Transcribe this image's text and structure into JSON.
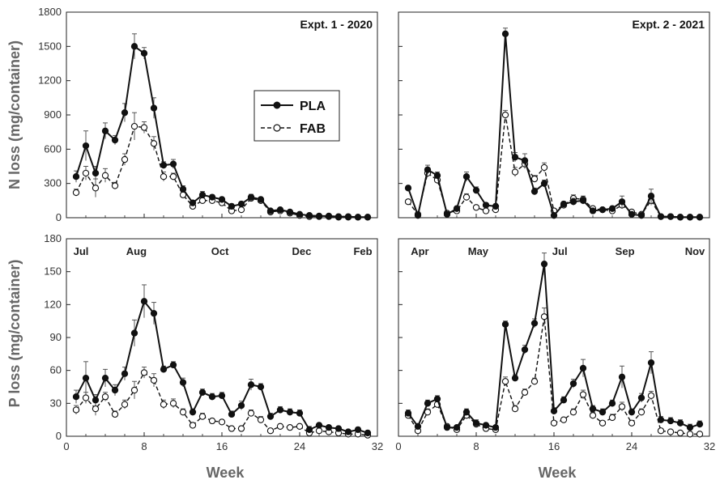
{
  "y_axis_labels": {
    "top": "N loss (mg/container)",
    "bottom": "P loss (mg/container)"
  },
  "x_axis_label": "Week",
  "legend": {
    "pla": "PLA",
    "fab": "FAB"
  },
  "chart_data": [
    {
      "type": "line",
      "title": "Expt. 1 - 2020",
      "xlabel": "Week",
      "ylabel": "N loss (mg/container)",
      "xlim": [
        0,
        32
      ],
      "ylim": [
        0,
        1800
      ],
      "xticks": [
        0,
        8,
        16,
        24,
        32
      ],
      "yticks": [
        0,
        300,
        600,
        900,
        1200,
        1500,
        1800
      ],
      "months": [],
      "series": [
        {
          "name": "PLA",
          "x": [
            1,
            2,
            3,
            4,
            5,
            6,
            7,
            8,
            9,
            10,
            11,
            12,
            13,
            14,
            15,
            16,
            17,
            18,
            19,
            20,
            21,
            22,
            23,
            24,
            25,
            26,
            27,
            28,
            29,
            30,
            31
          ],
          "y": [
            360,
            630,
            390,
            760,
            680,
            920,
            1500,
            1440,
            960,
            460,
            470,
            250,
            130,
            200,
            180,
            160,
            100,
            120,
            180,
            160,
            60,
            70,
            50,
            30,
            20,
            15,
            15,
            10,
            10,
            5,
            5
          ],
          "err": [
            50,
            130,
            60,
            70,
            40,
            80,
            110,
            50,
            90,
            30,
            40,
            30,
            20,
            30,
            20,
            20,
            20,
            20,
            25,
            20,
            10,
            10,
            5,
            5,
            5,
            5,
            5,
            5,
            5,
            5,
            5
          ]
        },
        {
          "name": "FAB",
          "x": [
            1,
            2,
            3,
            4,
            5,
            6,
            7,
            8,
            9,
            10,
            11,
            12,
            13,
            14,
            15,
            16,
            17,
            18,
            19,
            20,
            21,
            22,
            23,
            24,
            25,
            26,
            27,
            28,
            29,
            30,
            31
          ],
          "y": [
            220,
            390,
            260,
            370,
            280,
            510,
            800,
            790,
            650,
            360,
            360,
            200,
            100,
            150,
            150,
            130,
            60,
            70,
            170,
            150,
            50,
            60,
            40,
            20,
            10,
            10,
            10,
            5,
            5,
            5,
            5
          ],
          "err": [
            30,
            60,
            80,
            60,
            30,
            50,
            120,
            50,
            60,
            40,
            30,
            30,
            20,
            20,
            20,
            20,
            15,
            15,
            20,
            15,
            10,
            10,
            5,
            5,
            5,
            5,
            5,
            5,
            5,
            5,
            5
          ]
        }
      ]
    },
    {
      "type": "line",
      "title": "Expt. 2 - 2021",
      "xlabel": "Week",
      "ylabel": "",
      "xlim": [
        0,
        32
      ],
      "ylim": [
        0,
        1800
      ],
      "xticks": [
        0,
        8,
        16,
        24,
        32
      ],
      "yticks": [
        0,
        300,
        600,
        900,
        1200,
        1500,
        1800
      ],
      "months": [],
      "series": [
        {
          "name": "PLA",
          "x": [
            1,
            2,
            3,
            4,
            5,
            6,
            7,
            8,
            9,
            10,
            11,
            12,
            13,
            14,
            15,
            16,
            17,
            18,
            19,
            20,
            21,
            22,
            23,
            24,
            25,
            26,
            27,
            28,
            29,
            30,
            31
          ],
          "y": [
            260,
            20,
            420,
            370,
            30,
            80,
            360,
            240,
            110,
            100,
            1610,
            530,
            500,
            230,
            300,
            20,
            120,
            140,
            150,
            60,
            70,
            80,
            140,
            30,
            20,
            190,
            10,
            10,
            5,
            5,
            5
          ],
          "err": [
            20,
            10,
            40,
            30,
            10,
            20,
            40,
            30,
            20,
            20,
            50,
            40,
            60,
            30,
            30,
            10,
            20,
            30,
            30,
            15,
            15,
            20,
            50,
            10,
            10,
            60,
            5,
            5,
            5,
            5,
            5
          ]
        },
        {
          "name": "FAB",
          "x": [
            1,
            2,
            3,
            4,
            5,
            6,
            7,
            8,
            9,
            10,
            11,
            12,
            13,
            14,
            15,
            16,
            17,
            18,
            19,
            20,
            21,
            22,
            23,
            24,
            25,
            26,
            27,
            28,
            29,
            30,
            31
          ],
          "y": [
            140,
            30,
            390,
            330,
            40,
            60,
            180,
            90,
            60,
            70,
            900,
            400,
            470,
            340,
            440,
            60,
            110,
            170,
            160,
            80,
            70,
            60,
            110,
            50,
            30,
            150,
            10,
            10,
            5,
            5,
            5
          ],
          "err": [
            20,
            10,
            30,
            30,
            10,
            20,
            30,
            20,
            15,
            15,
            40,
            40,
            40,
            30,
            40,
            20,
            20,
            30,
            30,
            15,
            15,
            15,
            30,
            15,
            10,
            40,
            5,
            5,
            5,
            5,
            5
          ]
        }
      ]
    },
    {
      "type": "line",
      "title": "",
      "xlabel": "Week",
      "ylabel": "P loss (mg/container)",
      "xlim": [
        0,
        32
      ],
      "ylim": [
        0,
        180
      ],
      "xticks": [
        0,
        8,
        16,
        24,
        32
      ],
      "yticks": [
        0,
        30,
        60,
        90,
        120,
        150,
        180
      ],
      "months": [
        {
          "label": "Jul",
          "x": 1.5
        },
        {
          "label": "Aug",
          "x": 7.2
        },
        {
          "label": "Oct",
          "x": 15.8
        },
        {
          "label": "Dec",
          "x": 24.2
        },
        {
          "label": "Feb",
          "x": 30.5
        }
      ],
      "series": [
        {
          "name": "PLA",
          "x": [
            1,
            2,
            3,
            4,
            5,
            6,
            7,
            8,
            9,
            10,
            11,
            12,
            13,
            14,
            15,
            16,
            17,
            18,
            19,
            20,
            21,
            22,
            23,
            24,
            25,
            26,
            27,
            28,
            29,
            30,
            31
          ],
          "y": [
            36,
            53,
            33,
            53,
            42,
            57,
            94,
            123,
            112,
            61,
            65,
            49,
            22,
            40,
            36,
            37,
            20,
            28,
            47,
            45,
            18,
            24,
            22,
            21,
            6,
            10,
            8,
            7,
            4,
            6,
            3
          ],
          "err": [
            6,
            15,
            5,
            8,
            5,
            6,
            12,
            15,
            10,
            3,
            3,
            4,
            3,
            3,
            3,
            3,
            3,
            4,
            5,
            3,
            3,
            3,
            3,
            3,
            3,
            2,
            2,
            2,
            2,
            2,
            2
          ]
        },
        {
          "name": "FAB",
          "x": [
            1,
            2,
            3,
            4,
            5,
            6,
            7,
            8,
            9,
            10,
            11,
            12,
            13,
            14,
            15,
            16,
            17,
            18,
            19,
            20,
            21,
            22,
            23,
            24,
            25,
            26,
            27,
            28,
            29,
            30,
            31
          ],
          "y": [
            24,
            35,
            25,
            36,
            20,
            29,
            42,
            58,
            51,
            29,
            30,
            22,
            10,
            18,
            14,
            13,
            7,
            7,
            21,
            15,
            5,
            9,
            8,
            9,
            3,
            5,
            4,
            3,
            2,
            2,
            1
          ],
          "err": [
            4,
            5,
            6,
            4,
            3,
            4,
            8,
            5,
            6,
            4,
            4,
            3,
            2,
            3,
            2,
            2,
            2,
            2,
            3,
            3,
            2,
            2,
            2,
            2,
            1,
            1,
            1,
            1,
            1,
            1,
            1
          ]
        }
      ]
    },
    {
      "type": "line",
      "title": "",
      "xlabel": "Week",
      "ylabel": "",
      "xlim": [
        0,
        32
      ],
      "ylim": [
        0,
        180
      ],
      "xticks": [
        0,
        8,
        16,
        24,
        32
      ],
      "yticks": [
        0,
        30,
        60,
        90,
        120,
        150,
        180
      ],
      "months": [
        {
          "label": "Apr",
          "x": 2.2
        },
        {
          "label": "May",
          "x": 8.2
        },
        {
          "label": "Jul",
          "x": 16.6
        },
        {
          "label": "Sep",
          "x": 23.3
        },
        {
          "label": "Nov",
          "x": 30.5
        }
      ],
      "series": [
        {
          "name": "PLA",
          "x": [
            1,
            2,
            3,
            4,
            5,
            6,
            7,
            8,
            9,
            10,
            11,
            12,
            13,
            14,
            15,
            16,
            17,
            18,
            19,
            20,
            21,
            22,
            23,
            24,
            25,
            26,
            27,
            28,
            29,
            30,
            31
          ],
          "y": [
            21,
            9,
            30,
            34,
            8,
            8,
            22,
            12,
            10,
            8,
            102,
            53,
            79,
            103,
            157,
            23,
            33,
            48,
            62,
            25,
            22,
            30,
            54,
            22,
            35,
            67,
            15,
            14,
            12,
            8,
            11
          ],
          "err": [
            3,
            2,
            3,
            3,
            2,
            2,
            3,
            3,
            2,
            2,
            3,
            3,
            4,
            4,
            10,
            3,
            3,
            4,
            8,
            3,
            3,
            3,
            10,
            3,
            4,
            10,
            3,
            3,
            3,
            3,
            3
          ]
        },
        {
          "name": "FAB",
          "x": [
            1,
            2,
            3,
            4,
            5,
            6,
            7,
            8,
            9,
            10,
            11,
            12,
            13,
            14,
            15,
            16,
            17,
            18,
            19,
            20,
            21,
            22,
            23,
            24,
            25,
            26,
            27,
            28,
            29,
            30,
            31
          ],
          "y": [
            19,
            5,
            22,
            29,
            9,
            6,
            19,
            11,
            7,
            6,
            50,
            25,
            40,
            50,
            109,
            12,
            15,
            22,
            38,
            19,
            12,
            17,
            27,
            12,
            22,
            37,
            5,
            4,
            3,
            2,
            2
          ],
          "err": [
            2,
            2,
            3,
            3,
            2,
            2,
            3,
            2,
            2,
            2,
            4,
            3,
            3,
            3,
            8,
            2,
            2,
            3,
            4,
            3,
            2,
            3,
            4,
            2,
            3,
            4,
            1,
            1,
            1,
            1,
            1
          ]
        }
      ]
    }
  ]
}
